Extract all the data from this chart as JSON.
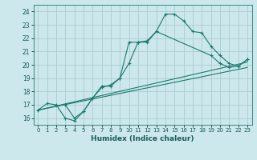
{
  "xlabel": "Humidex (Indice chaleur)",
  "ylabel": "",
  "bg_color": "#cce8ec",
  "grid_color": "#aacccc",
  "line_color": "#1a7a6e",
  "xlim": [
    -0.5,
    23.5
  ],
  "ylim": [
    15.5,
    24.5
  ],
  "xticks": [
    0,
    1,
    2,
    3,
    4,
    5,
    6,
    7,
    8,
    9,
    10,
    11,
    12,
    13,
    14,
    15,
    16,
    17,
    18,
    19,
    20,
    21,
    22,
    23
  ],
  "yticks": [
    16,
    17,
    18,
    19,
    20,
    21,
    22,
    23,
    24
  ],
  "line1_x": [
    0,
    1,
    2,
    3,
    4,
    5,
    6,
    7,
    8,
    9,
    10,
    11,
    12,
    13,
    14,
    15,
    16,
    17,
    18,
    19,
    20,
    21,
    22,
    23
  ],
  "line1_y": [
    16.6,
    17.1,
    17.0,
    16.0,
    15.8,
    16.5,
    17.5,
    18.3,
    18.5,
    19.0,
    20.1,
    21.7,
    21.8,
    22.5,
    23.8,
    23.8,
    23.3,
    22.5,
    22.4,
    21.4,
    20.7,
    20.1,
    19.9,
    20.4
  ],
  "line2_x": [
    3,
    4,
    5,
    6,
    7,
    8,
    9,
    10,
    11,
    12,
    13,
    19,
    20,
    21,
    22,
    23
  ],
  "line2_y": [
    17.0,
    16.0,
    16.5,
    17.5,
    18.4,
    18.4,
    19.0,
    21.7,
    21.7,
    21.7,
    22.5,
    20.7,
    20.1,
    19.8,
    19.9,
    20.4
  ],
  "line3_x": [
    0,
    23
  ],
  "line3_y": [
    16.6,
    20.2
  ],
  "line4_x": [
    0,
    23
  ],
  "line4_y": [
    16.6,
    19.8
  ]
}
